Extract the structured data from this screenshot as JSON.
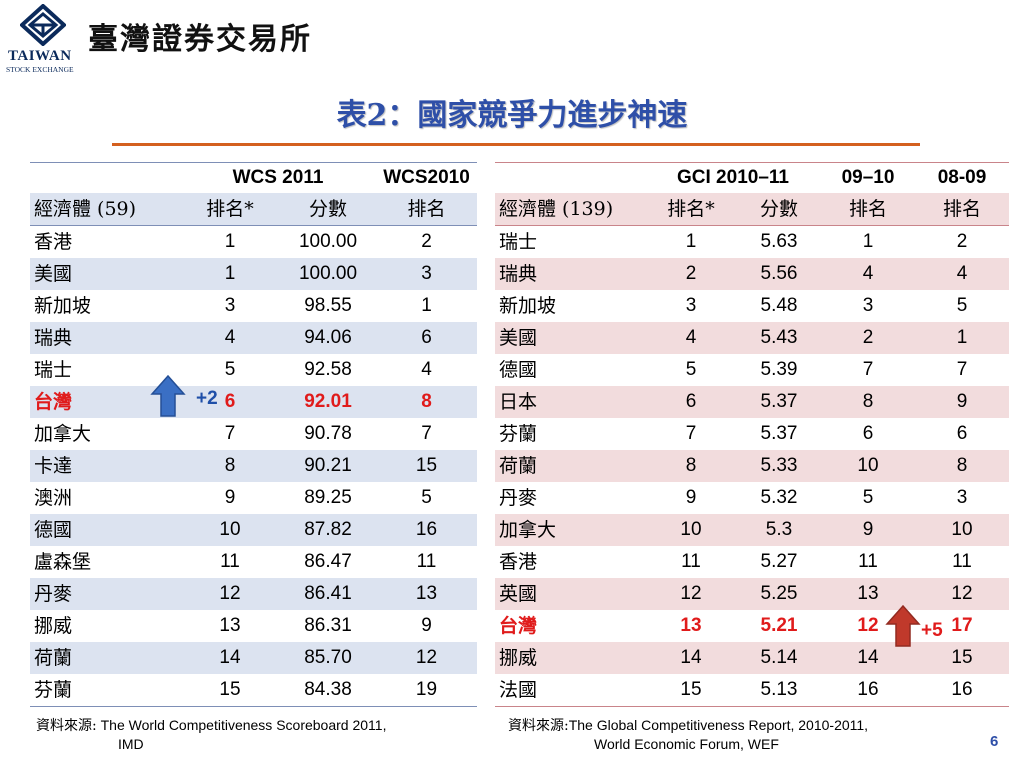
{
  "header": {
    "logo_brand": "TAIWAN",
    "logo_sub": "STOCK EXCHANGE",
    "exchange_name": "臺灣證券交易所"
  },
  "title": "表2：國家競爭力進步神速",
  "left_table": {
    "headers": [
      "",
      "WCS 2011",
      "",
      "WCS2010"
    ],
    "subheaders": [
      "經濟體 (59)",
      "排名*",
      "分數",
      "排名"
    ],
    "rows": [
      [
        "香港",
        "1",
        "100.00",
        "2"
      ],
      [
        "美國",
        "1",
        "100.00",
        "3"
      ],
      [
        "新加坡",
        "3",
        "98.55",
        "1"
      ],
      [
        "瑞典",
        "4",
        "94.06",
        "6"
      ],
      [
        "瑞士",
        "5",
        "92.58",
        "4"
      ],
      [
        "台灣",
        "6",
        "92.01",
        "8"
      ],
      [
        "加拿大",
        "7",
        "90.78",
        "7"
      ],
      [
        "卡達",
        "8",
        "90.21",
        "15"
      ],
      [
        "澳洲",
        "9",
        "89.25",
        "5"
      ],
      [
        "德國",
        "10",
        "87.82",
        "16"
      ],
      [
        "盧森堡",
        "11",
        "86.47",
        "11"
      ],
      [
        "丹麥",
        "12",
        "86.41",
        "13"
      ],
      [
        "挪威",
        "13",
        "86.31",
        "9"
      ],
      [
        "荷蘭",
        "14",
        "85.70",
        "12"
      ],
      [
        "芬蘭",
        "15",
        "84.38",
        "19"
      ]
    ],
    "change_badge": "+2",
    "source_label": "資料來源:",
    "source_text": " The World Competitiveness Scoreboard 2011,",
    "source_text2": "IMD"
  },
  "right_table": {
    "headers": [
      "",
      "GCI 2010–11",
      "",
      "09–10",
      "08-09"
    ],
    "subheaders": [
      "經濟體 (139)",
      "排名*",
      "分數",
      "排名",
      "排名"
    ],
    "rows": [
      [
        "瑞士",
        "1",
        "5.63",
        "1",
        "2"
      ],
      [
        "瑞典",
        "2",
        "5.56",
        "4",
        "4"
      ],
      [
        "新加坡",
        "3",
        "5.48",
        "3",
        "5"
      ],
      [
        "美國",
        "4",
        "5.43",
        "2",
        "1"
      ],
      [
        "德國",
        "5",
        "5.39",
        "7",
        "7"
      ],
      [
        "日本",
        "6",
        "5.37",
        "8",
        "9"
      ],
      [
        "芬蘭",
        "7",
        "5.37",
        "6",
        "6"
      ],
      [
        "荷蘭",
        "8",
        "5.33",
        "10",
        "8"
      ],
      [
        "丹麥",
        "9",
        "5.32",
        "5",
        "3"
      ],
      [
        "加拿大",
        "10",
        "5.3",
        "9",
        "10"
      ],
      [
        "香港",
        "11",
        "5.27",
        "11",
        "11"
      ],
      [
        "英國",
        "12",
        "5.25",
        "13",
        "12"
      ],
      [
        "台灣",
        "13",
        "5.21",
        "12",
        "17"
      ],
      [
        "挪威",
        "14",
        "5.14",
        "14",
        "15"
      ],
      [
        "法國",
        "15",
        "5.13",
        "16",
        "16"
      ]
    ],
    "change_badge": "+5",
    "source_label": "資料來源:",
    "source_text": "The Global Competitiveness Report, 2010-2011,",
    "source_text2": "World Economic Forum, WEF"
  },
  "page_number": "6",
  "colors": {
    "title": "#2e4fa8",
    "rule": "#d4601f",
    "left_alt_row": "#dce3f0",
    "right_alt_row": "#f2dcdd",
    "highlight": "#e01b1b",
    "up_arrow_left": "#3a6fc4",
    "up_arrow_right": "#c0392b"
  },
  "icons": {
    "left_arrow": "up-arrow-icon",
    "right_arrow": "up-arrow-icon"
  }
}
